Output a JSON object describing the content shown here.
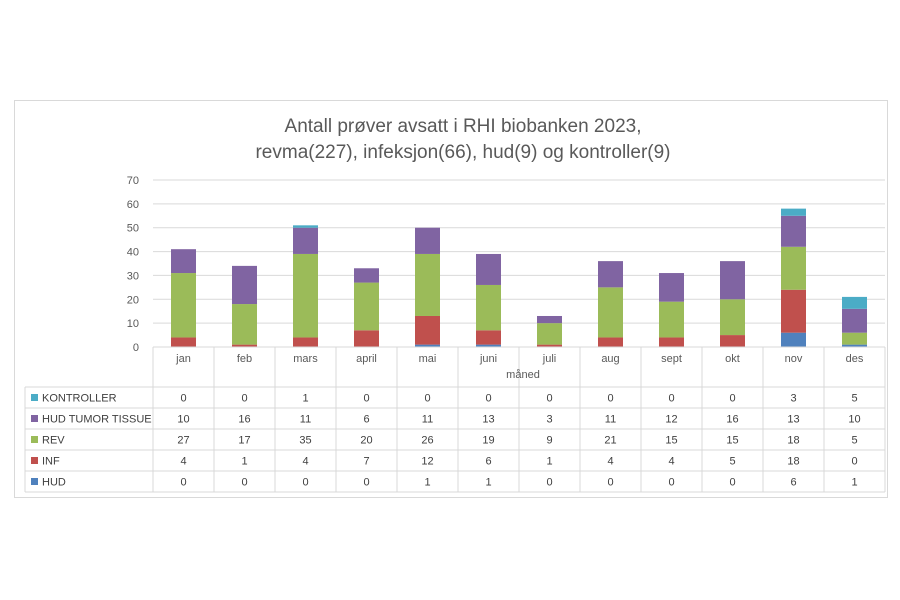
{
  "chart_data": {
    "type": "bar",
    "stacked": true,
    "title_lines": [
      "Antall prøver avsatt i RHI biobanken 2023,",
      "revma(227), infeksjon(66), hud(9) og kontroller(9)"
    ],
    "xlabel": "måned",
    "ylabel": "",
    "ylim": [
      0,
      70
    ],
    "yticks": [
      0,
      10,
      20,
      30,
      40,
      50,
      60,
      70
    ],
    "gridlines": true,
    "legend": "data-table",
    "categories": [
      "jan",
      "feb",
      "mars",
      "april",
      "mai",
      "juni",
      "juli",
      "aug",
      "sept",
      "okt",
      "nov",
      "des"
    ],
    "series": [
      {
        "name": "HUD",
        "color": "#4f81bd",
        "values": [
          0,
          0,
          0,
          0,
          1,
          1,
          0,
          0,
          0,
          0,
          6,
          1
        ]
      },
      {
        "name": "INF",
        "color": "#c0504d",
        "values": [
          4,
          1,
          4,
          7,
          12,
          6,
          1,
          4,
          4,
          5,
          18,
          0
        ]
      },
      {
        "name": "REV",
        "color": "#9bbb59",
        "values": [
          27,
          17,
          35,
          20,
          26,
          19,
          9,
          21,
          15,
          15,
          18,
          5
        ]
      },
      {
        "name": "HUD TUMOR TISSUE",
        "color": "#8064a2",
        "values": [
          10,
          16,
          11,
          6,
          11,
          13,
          3,
          11,
          12,
          16,
          13,
          10
        ]
      },
      {
        "name": "KONTROLLER",
        "color": "#4bacc6",
        "values": [
          0,
          0,
          1,
          0,
          0,
          0,
          0,
          0,
          0,
          0,
          3,
          5
        ]
      }
    ],
    "table_row_order": [
      "KONTROLLER",
      "HUD TUMOR TISSUE",
      "REV",
      "INF",
      "HUD"
    ]
  }
}
